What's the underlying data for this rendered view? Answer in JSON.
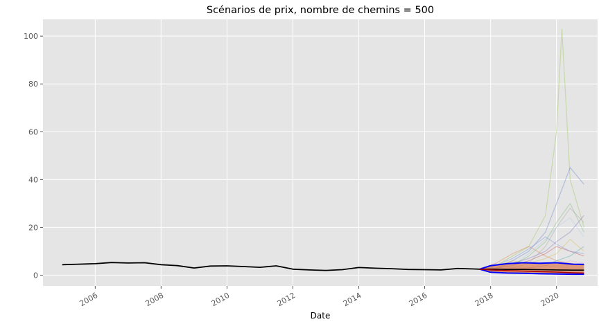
{
  "chart_data": {
    "type": "line",
    "title": "Scénarios de prix, nombre de chemins = 500",
    "xlabel": "Date",
    "ylabel": "",
    "x_axis": "date",
    "xlim": [
      "2004-06-01",
      "2021-04-01"
    ],
    "ylim": [
      -4.5,
      107
    ],
    "grid": true,
    "legend": "none",
    "x_ticks": [
      "2006-01-01",
      "2008-01-01",
      "2010-01-01",
      "2012-01-01",
      "2014-01-01",
      "2016-01-01",
      "2018-01-01",
      "2020-01-01"
    ],
    "x_tick_labels": [
      "2006",
      "2008",
      "2010",
      "2012",
      "2014",
      "2016",
      "2018",
      "2020"
    ],
    "y_ticks": [
      0,
      20,
      40,
      60,
      80,
      100
    ],
    "y_tick_labels": [
      "0",
      "20",
      "40",
      "60",
      "80",
      "100"
    ],
    "colors": {
      "background": "#e5e5e5",
      "grid": "#ffffff",
      "historical": "#000000",
      "upper_band": "#0000ff",
      "lower_band": "#0000ff",
      "median": "#000000",
      "mean": "#aa0000",
      "fan_fill": "#d9825b"
    },
    "series": [
      {
        "role": "historical",
        "x": [
          "2005-01-01",
          "2005-07-01",
          "2006-01-01",
          "2006-07-01",
          "2007-01-01",
          "2007-07-01",
          "2008-01-01",
          "2008-07-01",
          "2009-01-01",
          "2009-07-01",
          "2010-01-01",
          "2010-07-01",
          "2011-01-01",
          "2011-07-01",
          "2012-01-01",
          "2012-07-01",
          "2013-01-01",
          "2013-07-01",
          "2014-01-01",
          "2014-07-01",
          "2015-01-01",
          "2015-07-01",
          "2016-01-01",
          "2016-07-01",
          "2017-01-01",
          "2017-07-01",
          "2017-09-01"
        ],
        "y": [
          4.4,
          4.6,
          4.8,
          5.3,
          5.1,
          5.2,
          4.4,
          4.0,
          3.0,
          3.8,
          3.9,
          3.6,
          3.3,
          3.9,
          2.5,
          2.2,
          2.0,
          2.3,
          3.2,
          2.9,
          2.7,
          2.4,
          2.3,
          2.2,
          2.8,
          2.6,
          2.5
        ]
      },
      {
        "role": "upper_band",
        "x": [
          "2017-09-01",
          "2018-01-01",
          "2018-07-01",
          "2019-01-01",
          "2019-07-01",
          "2020-01-01",
          "2020-07-01",
          "2020-11-01"
        ],
        "y": [
          2.5,
          4.0,
          4.8,
          5.2,
          5.0,
          5.2,
          4.6,
          4.5
        ]
      },
      {
        "role": "lower_band",
        "x": [
          "2017-09-01",
          "2018-01-01",
          "2018-07-01",
          "2019-01-01",
          "2019-07-01",
          "2020-01-01",
          "2020-07-01",
          "2020-11-01"
        ],
        "y": [
          2.5,
          1.2,
          0.9,
          0.8,
          0.6,
          0.5,
          0.4,
          0.4
        ]
      },
      {
        "role": "median",
        "x": [
          "2017-09-01",
          "2018-01-01",
          "2018-07-01",
          "2019-01-01",
          "2019-07-01",
          "2020-01-01",
          "2020-07-01",
          "2020-11-01"
        ],
        "y": [
          2.5,
          2.5,
          2.4,
          2.4,
          2.3,
          2.2,
          2.1,
          2.1
        ]
      },
      {
        "role": "mean",
        "x": [
          "2017-09-01",
          "2018-01-01",
          "2018-07-01",
          "2019-01-01",
          "2019-07-01",
          "2020-01-01",
          "2020-07-01",
          "2020-11-01"
        ],
        "y": [
          2.5,
          2.2,
          1.9,
          1.7,
          1.5,
          1.3,
          1.0,
          0.9
        ]
      }
    ],
    "simulated_paths": [
      {
        "color": "#8fbf3f",
        "x": [
          "2017-09-01",
          "2018-03-01",
          "2018-09-01",
          "2019-03-01",
          "2019-09-01",
          "2020-01-01",
          "2020-03-01",
          "2020-06-01",
          "2020-11-01"
        ],
        "y": [
          2.5,
          4,
          8,
          12,
          25,
          60,
          103,
          40,
          20
        ]
      },
      {
        "color": "#4f73c9",
        "x": [
          "2017-09-01",
          "2018-03-01",
          "2018-09-01",
          "2019-03-01",
          "2019-09-01",
          "2020-01-01",
          "2020-06-01",
          "2020-11-01"
        ],
        "y": [
          2.5,
          3,
          6,
          10,
          18,
          30,
          45,
          38
        ]
      },
      {
        "color": "#e0733a",
        "x": [
          "2017-09-01",
          "2018-03-01",
          "2018-09-01",
          "2019-03-01",
          "2019-09-01",
          "2020-01-01",
          "2020-06-01",
          "2020-11-01"
        ],
        "y": [
          2.5,
          5,
          9,
          12,
          8,
          6,
          5,
          4
        ]
      },
      {
        "color": "#c43c3c",
        "x": [
          "2017-09-01",
          "2018-03-01",
          "2018-09-01",
          "2019-03-01",
          "2019-09-01",
          "2020-01-01",
          "2020-06-01",
          "2020-11-01"
        ],
        "y": [
          2.5,
          3,
          4,
          6,
          9,
          12,
          10,
          8
        ]
      },
      {
        "color": "#9a9a9a",
        "x": [
          "2017-09-01",
          "2018-03-01",
          "2018-09-01",
          "2019-03-01",
          "2019-09-01",
          "2020-01-01",
          "2020-06-01",
          "2020-11-01"
        ],
        "y": [
          2.5,
          2,
          3,
          5,
          12,
          20,
          28,
          22
        ]
      },
      {
        "color": "#7a5fb8",
        "x": [
          "2017-09-01",
          "2018-03-01",
          "2018-09-01",
          "2019-03-01",
          "2019-09-01",
          "2020-01-01",
          "2020-06-01",
          "2020-11-01"
        ],
        "y": [
          2.5,
          3,
          5,
          7,
          10,
          14,
          18,
          25
        ]
      },
      {
        "color": "#3aa0a0",
        "x": [
          "2017-09-01",
          "2018-03-01",
          "2018-09-01",
          "2019-03-01",
          "2019-09-01",
          "2020-01-01",
          "2020-06-01",
          "2020-11-01"
        ],
        "y": [
          2.5,
          2,
          2.5,
          3,
          4,
          6,
          8,
          12
        ]
      },
      {
        "color": "#d8b43a",
        "x": [
          "2017-09-01",
          "2018-03-01",
          "2018-09-01",
          "2019-03-01",
          "2019-09-01",
          "2020-01-01",
          "2020-06-01",
          "2020-11-01"
        ],
        "y": [
          2.5,
          4,
          6,
          5,
          7,
          9,
          15,
          10
        ]
      },
      {
        "color": "#6bb56b",
        "x": [
          "2017-09-01",
          "2018-03-01",
          "2018-09-01",
          "2019-03-01",
          "2019-09-01",
          "2020-01-01",
          "2020-06-01",
          "2020-11-01"
        ],
        "y": [
          2.5,
          3,
          4,
          8,
          14,
          22,
          30,
          18
        ]
      },
      {
        "color": "#e39ad0",
        "x": [
          "2017-09-01",
          "2018-03-01",
          "2018-09-01",
          "2019-03-01",
          "2019-09-01",
          "2020-01-01",
          "2020-06-01",
          "2020-11-01"
        ],
        "y": [
          2.5,
          3,
          2,
          3,
          5,
          4,
          6,
          5
        ]
      },
      {
        "color": "#a8c8e8",
        "x": [
          "2017-09-01",
          "2018-03-01",
          "2018-09-01",
          "2019-03-01",
          "2019-09-01",
          "2020-01-01",
          "2020-06-01",
          "2020-11-01"
        ],
        "y": [
          2.5,
          2,
          4,
          9,
          15,
          20,
          24,
          16
        ]
      },
      {
        "color": "#b08060",
        "x": [
          "2017-09-01",
          "2018-03-01",
          "2018-09-01",
          "2019-03-01",
          "2019-09-01",
          "2020-01-01",
          "2020-06-01",
          "2020-11-01"
        ],
        "y": [
          2.5,
          1.5,
          1.2,
          1.0,
          0.8,
          0.7,
          0.5,
          0.4
        ]
      },
      {
        "color": "#e07070",
        "x": [
          "2017-09-01",
          "2018-03-01",
          "2018-09-01",
          "2019-03-01",
          "2019-09-01",
          "2020-01-01",
          "2020-06-01",
          "2020-11-01"
        ],
        "y": [
          2.5,
          2.5,
          3,
          3,
          4,
          3.5,
          3,
          3
        ]
      },
      {
        "color": "#6a8adf",
        "x": [
          "2017-09-01",
          "2018-03-01",
          "2018-09-01",
          "2019-03-01",
          "2019-09-01",
          "2020-01-01",
          "2020-06-01",
          "2020-11-01"
        ],
        "y": [
          2.5,
          4,
          7,
          11,
          16,
          13,
          10,
          9
        ]
      }
    ]
  }
}
